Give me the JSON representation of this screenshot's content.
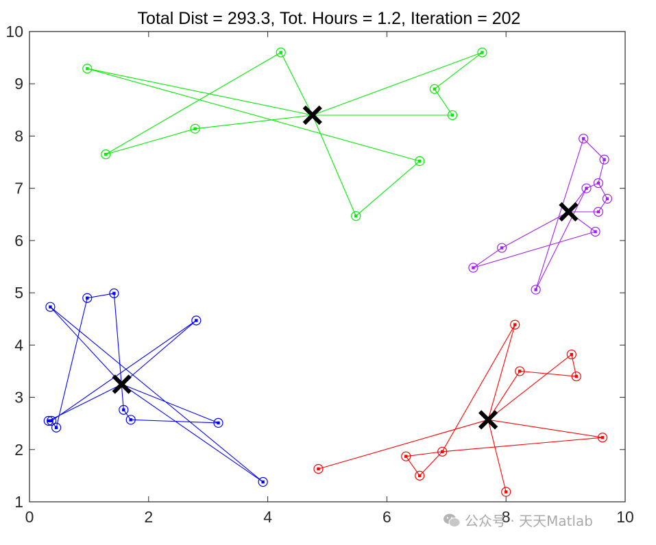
{
  "chart_data": {
    "type": "scatter",
    "title": "Total Dist = 293.3, Tot. Hours = 1.2, Iteration = 202",
    "xlim": [
      0,
      10
    ],
    "ylim": [
      1,
      10
    ],
    "xticks": [
      0,
      2,
      4,
      6,
      8,
      10
    ],
    "yticks": [
      1,
      2,
      3,
      4,
      5,
      6,
      7,
      8,
      9,
      10
    ],
    "grid": false,
    "series": [
      {
        "color": "#00ee00",
        "centroid": [
          4.75,
          8.4
        ],
        "route": [
          [
            4.75,
            8.4
          ],
          [
            4.22,
            9.6
          ],
          [
            1.28,
            7.65
          ],
          [
            2.78,
            8.14
          ],
          [
            4.75,
            8.4
          ],
          [
            7.1,
            8.4
          ],
          [
            6.8,
            8.9
          ],
          [
            7.6,
            9.6
          ],
          [
            4.75,
            8.4
          ],
          [
            0.97,
            9.29
          ],
          [
            6.55,
            7.52
          ],
          [
            5.48,
            6.47
          ],
          [
            4.75,
            8.4
          ]
        ]
      },
      {
        "color": "#a020f0",
        "centroid": [
          9.05,
          6.55
        ],
        "route": [
          [
            9.05,
            6.55
          ],
          [
            9.55,
            6.55
          ],
          [
            9.7,
            6.8
          ],
          [
            9.55,
            7.1
          ],
          [
            9.35,
            7.0
          ],
          [
            8.5,
            5.06
          ],
          [
            9.3,
            7.95
          ],
          [
            9.65,
            7.55
          ],
          [
            9.55,
            7.1
          ],
          [
            9.35,
            7.0
          ],
          [
            9.05,
            6.55
          ],
          [
            9.5,
            6.17
          ],
          [
            7.45,
            5.48
          ],
          [
            7.93,
            5.86
          ],
          [
            9.05,
            6.55
          ]
        ]
      },
      {
        "color": "#0000ff",
        "centroid": [
          1.55,
          3.25
        ],
        "route": [
          [
            1.55,
            3.25
          ],
          [
            2.8,
            4.47
          ],
          [
            0.37,
            2.55
          ],
          [
            0.45,
            2.42
          ],
          [
            0.97,
            4.9
          ],
          [
            1.42,
            4.99
          ],
          [
            1.58,
            2.76
          ],
          [
            1.7,
            2.57
          ],
          [
            3.17,
            2.51
          ],
          [
            1.55,
            3.25
          ],
          [
            0.35,
            4.73
          ],
          [
            3.92,
            1.38
          ],
          [
            1.55,
            3.25
          ],
          [
            0.32,
            2.55
          ],
          [
            1.55,
            3.25
          ]
        ]
      },
      {
        "color": "#ff0000",
        "centroid": [
          7.7,
          2.57
        ],
        "route": [
          [
            7.7,
            2.57
          ],
          [
            8.23,
            3.5
          ],
          [
            9.18,
            3.4
          ],
          [
            9.1,
            3.82
          ],
          [
            7.7,
            2.57
          ],
          [
            9.62,
            2.23
          ],
          [
            6.93,
            1.96
          ],
          [
            6.32,
            1.87
          ],
          [
            6.55,
            1.5
          ],
          [
            6.93,
            1.96
          ],
          [
            8.15,
            4.39
          ],
          [
            7.7,
            2.57
          ],
          [
            8.0,
            1.19
          ],
          [
            7.7,
            2.57
          ],
          [
            4.85,
            1.63
          ]
        ]
      }
    ]
  },
  "watermark": {
    "text": "公众号 · 天天Matlab"
  },
  "colors": {
    "axis": "#262626",
    "centroid_marker": "#000000"
  }
}
